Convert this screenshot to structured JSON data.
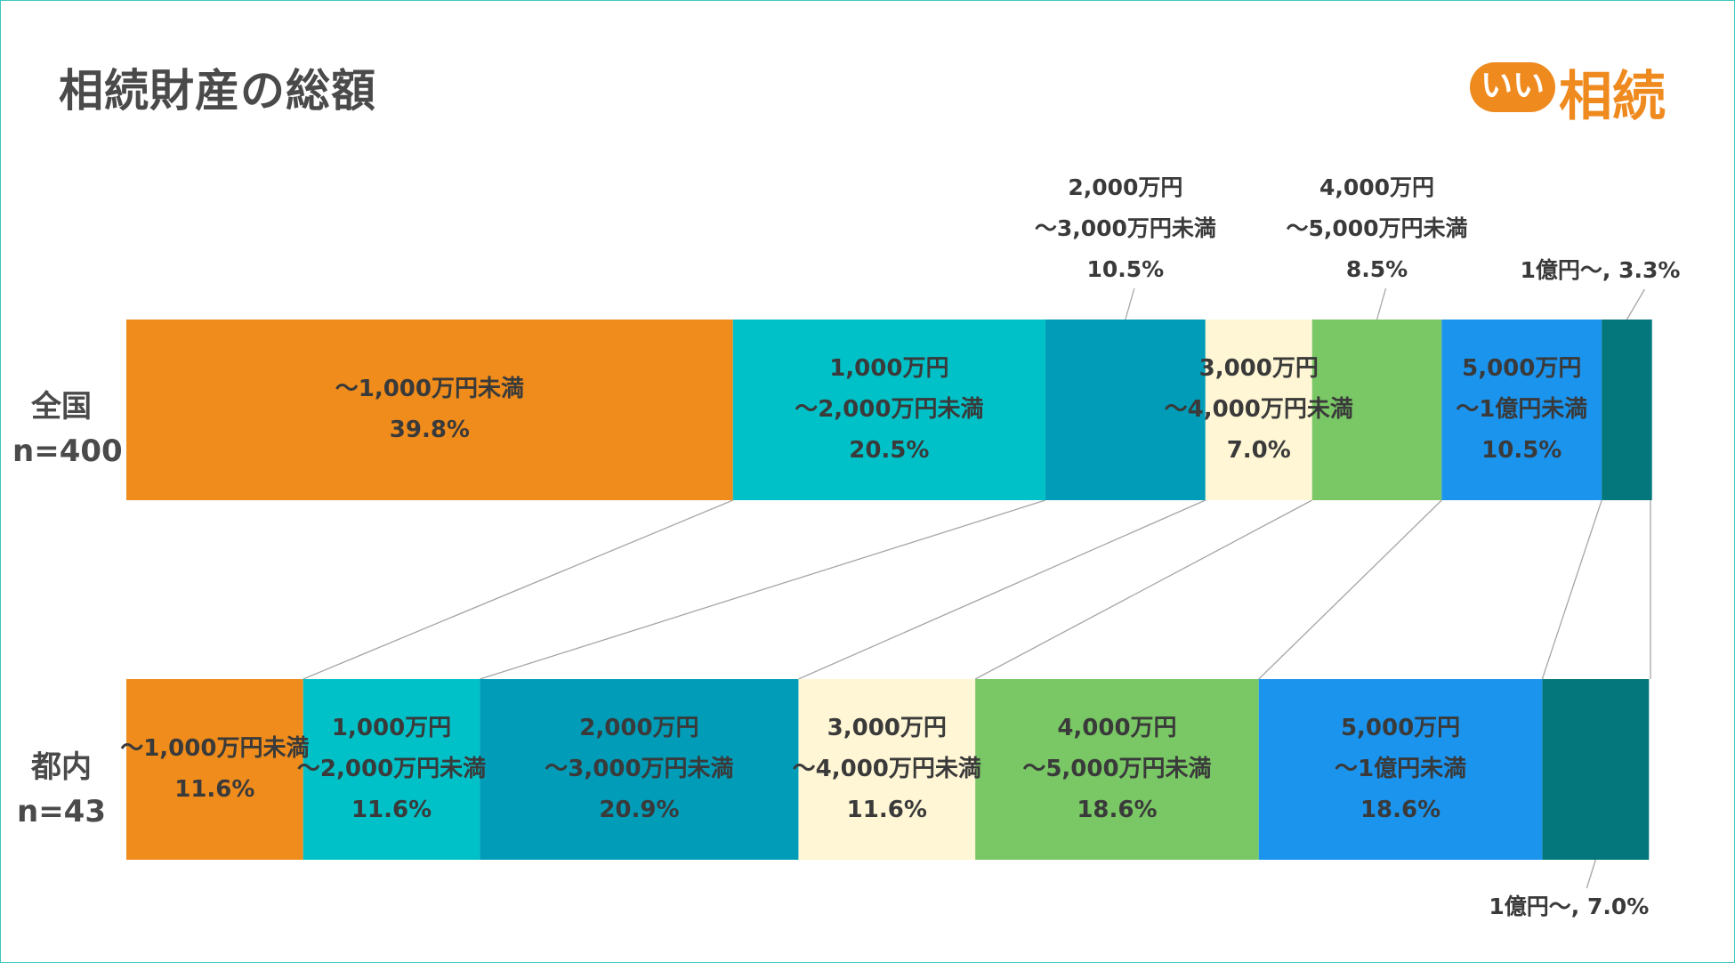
{
  "title": "相続財産の総額",
  "logo": {
    "mark": "いい",
    "text": "相続",
    "color": "#ef8a1f"
  },
  "chart_data": {
    "type": "bar",
    "orientation": "horizontal",
    "stacked": "percent",
    "categories": [
      {
        "name": "全国",
        "n": "n=400"
      },
      {
        "name": "都内",
        "n": "n=43"
      }
    ],
    "series": [
      {
        "name": "～1,000万円未満",
        "label_lines": [
          "～1,000万円未満"
        ],
        "color": "#ef8c1c",
        "values": [
          39.8,
          11.6
        ]
      },
      {
        "name": "1,000万円～2,000万円未満",
        "label_lines": [
          "1,000万円",
          "～2,000万円未満"
        ],
        "color": "#00c1c7",
        "values": [
          20.5,
          11.6
        ]
      },
      {
        "name": "2,000万円～3,000万円未満",
        "label_lines": [
          "2,000万円",
          "～3,000万円未満"
        ],
        "color": "#009cb8",
        "values": [
          10.5,
          20.9
        ]
      },
      {
        "name": "3,000万円～4,000万円未満",
        "label_lines": [
          "3,000万円",
          "～4,000万円未満"
        ],
        "color": "#fef6d4",
        "values": [
          7.0,
          11.6
        ]
      },
      {
        "name": "4,000万円～5,000万円未満",
        "label_lines": [
          "4,000万円",
          "～5,000万円未満"
        ],
        "color": "#79c765",
        "values": [
          8.5,
          18.6
        ]
      },
      {
        "name": "5,000万円～1億円未満",
        "label_lines": [
          "5,000万円",
          "～1億円未満"
        ],
        "color": "#1b94ee",
        "values": [
          10.5,
          18.6
        ]
      },
      {
        "name": "1億円～",
        "label_lines": [
          "1億円～"
        ],
        "color": "#04777c",
        "values": [
          3.3,
          7.0
        ]
      }
    ],
    "value_labels": [
      [
        "39.8%",
        "20.5%",
        "10.5%",
        "7.0%",
        "8.5%",
        "10.5%",
        "3.3%"
      ],
      [
        "11.6%",
        "11.6%",
        "20.9%",
        "11.6%",
        "18.6%",
        "18.6%",
        "7.0%"
      ]
    ],
    "outside_labels": {
      "top": [
        {
          "series": 2,
          "lines": [
            "2,000万円",
            "～3,000万円未満",
            "10.5%"
          ]
        },
        {
          "series": 4,
          "lines": [
            "4,000万円",
            "～5,000万円未満",
            "8.5%"
          ]
        },
        {
          "series": 6,
          "lines": [
            "1億円～, 3.3%"
          ]
        }
      ],
      "bottom": [
        {
          "series": 6,
          "lines": [
            "1億円～, 7.0%"
          ]
        }
      ]
    },
    "xlim": [
      0,
      100
    ],
    "legend": "none",
    "grid": false,
    "series_connector_lines": true
  }
}
